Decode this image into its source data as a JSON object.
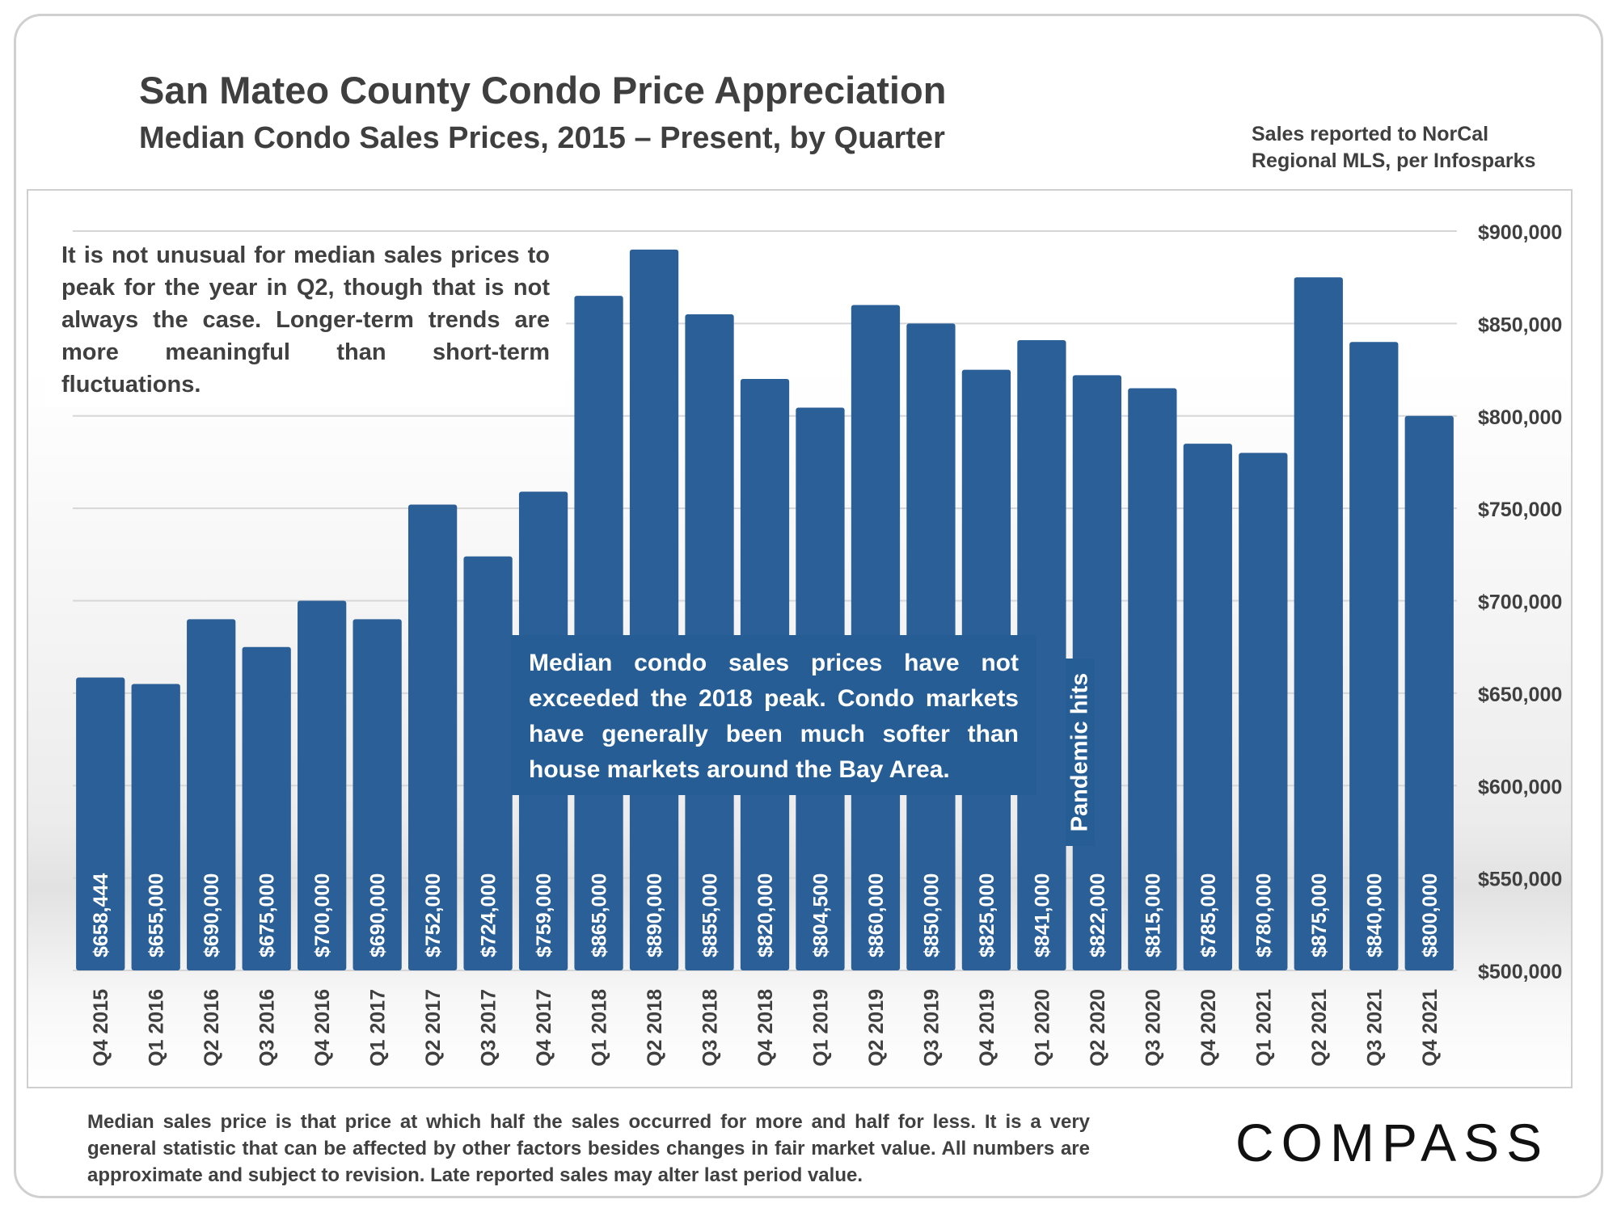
{
  "header": {
    "title": "San Mateo County Condo Price Appreciation",
    "subtitle": "Median Condo Sales Prices, 2015 – Present, by Quarter",
    "source": "Sales reported to NorCal Regional MLS, per Infosparks"
  },
  "annotations": {
    "left_note": "It is not unusual for median sales prices to peak for the year in Q2, though that is not always the case. Longer-term trends are more meaningful than short-term fluctuations.",
    "center_note": "Median condo sales prices have not exceeded the 2018 peak. Condo markets have generally been much softer than house markets around the Bay Area.",
    "pandemic": "Pandemic hits"
  },
  "footnote": "Median sales price is that price at which half the sales occurred for more and half for less. It is a very general statistic that can be affected by other factors besides changes in fair market value. All numbers are approximate and subject to revision. Late reported sales may alter last period value.",
  "brand": {
    "logo_text": "COMPASS"
  },
  "colors": {
    "bar": "#2a5f97",
    "annotation_bg": "#265d95",
    "text": "#3f3f3f",
    "grid": "#d6d6d6"
  },
  "chart_data": {
    "type": "bar",
    "title": "San Mateo County Condo Price Appreciation",
    "subtitle": "Median Condo Sales Prices, 2015 – Present, by Quarter",
    "xlabel": "",
    "ylabel": "",
    "ylim": [
      500000,
      900000
    ],
    "y_ticks": [
      500000,
      550000,
      600000,
      650000,
      700000,
      750000,
      800000,
      850000,
      900000
    ],
    "y_tick_labels": [
      "$500,000",
      "$550,000",
      "$600,000",
      "$650,000",
      "$700,000",
      "$750,000",
      "$800,000",
      "$850,000",
      "$900,000"
    ],
    "y_axis_side": "right",
    "grid": true,
    "categories": [
      "Q4 2015",
      "Q1 2016",
      "Q2 2016",
      "Q3 2016",
      "Q4 2016",
      "Q1 2017",
      "Q2 2017",
      "Q3 2017",
      "Q4 2017",
      "Q1 2018",
      "Q2 2018",
      "Q3 2018",
      "Q4 2018",
      "Q1 2019",
      "Q2 2019",
      "Q3 2019",
      "Q4 2019",
      "Q1 2020",
      "Q2 2020",
      "Q3 2020",
      "Q4 2020",
      "Q1 2021",
      "Q2 2021",
      "Q3 2021",
      "Q4 2021"
    ],
    "values": [
      658444,
      655000,
      690000,
      675000,
      700000,
      690000,
      752000,
      724000,
      759000,
      865000,
      890000,
      855000,
      820000,
      804500,
      860000,
      850000,
      825000,
      841000,
      822000,
      815000,
      785000,
      780000,
      875000,
      840000,
      800000
    ],
    "data_labels": [
      "$658,444",
      "$655,000",
      "$690,000",
      "$675,000",
      "$700,000",
      "$690,000",
      "$752,000",
      "$724,000",
      "$759,000",
      "$865,000",
      "$890,000",
      "$855,000",
      "$820,000",
      "$804,500",
      "$860,000",
      "$850,000",
      "$825,000",
      "$841,000",
      "$822,000",
      "$815,000",
      "$785,000",
      "$780,000",
      "$875,000",
      "$840,000",
      "$800,000"
    ]
  }
}
